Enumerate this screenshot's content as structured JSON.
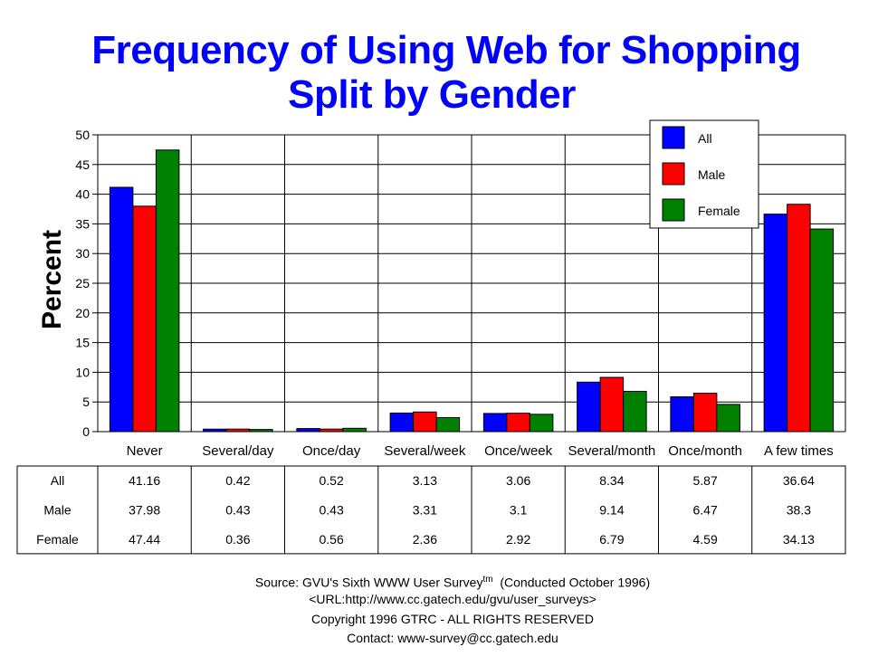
{
  "title_line1": "Frequency of Using Web for Shopping",
  "title_line2": "Split by Gender",
  "chart_data": {
    "type": "bar",
    "title": "Frequency of Using Web for Shopping Split by Gender",
    "ylabel": "Percent",
    "ylim": [
      0,
      50
    ],
    "yticks": [
      0,
      5,
      10,
      15,
      20,
      25,
      30,
      35,
      40,
      45,
      50
    ],
    "grid": true,
    "legend_position": "top-right",
    "categories": [
      "Never",
      "Several/day",
      "Once/day",
      "Several/week",
      "Once/week",
      "Several/month",
      "Once/month",
      "A few times"
    ],
    "series": [
      {
        "name": "All",
        "color": "#0000ff",
        "values": [
          41.16,
          0.42,
          0.52,
          3.13,
          3.06,
          8.34,
          5.87,
          36.64
        ]
      },
      {
        "name": "Male",
        "color": "#ff0000",
        "values": [
          37.98,
          0.43,
          0.43,
          3.31,
          3.1,
          9.14,
          6.47,
          38.3
        ]
      },
      {
        "name": "Female",
        "color": "#008000",
        "values": [
          47.44,
          0.36,
          0.56,
          2.36,
          2.92,
          6.79,
          4.59,
          34.13
        ]
      }
    ],
    "table_values": [
      [
        "41.16",
        "0.42",
        "0.52",
        "3.13",
        "3.06",
        "8.34",
        "5.87",
        "36.64"
      ],
      [
        "37.98",
        "0.43",
        "0.43",
        "3.31",
        "3.1",
        "9.14",
        "6.47",
        "38.3"
      ],
      [
        "47.44",
        "0.36",
        "0.56",
        "2.36",
        "2.92",
        "6.79",
        "4.59",
        "34.13"
      ]
    ]
  },
  "footer": {
    "source_prefix": "Source: GVU's Sixth WWW User Survey",
    "source_sup": "tm",
    "source_suffix": "  (Conducted October 1996)",
    "url": "<URL:http://www.cc.gatech.edu/gvu/user_surveys>",
    "copyright": "Copyright 1996 GTRC -  ALL RIGHTS RESERVED",
    "contact": "Contact: www-survey@cc.gatech.edu"
  }
}
